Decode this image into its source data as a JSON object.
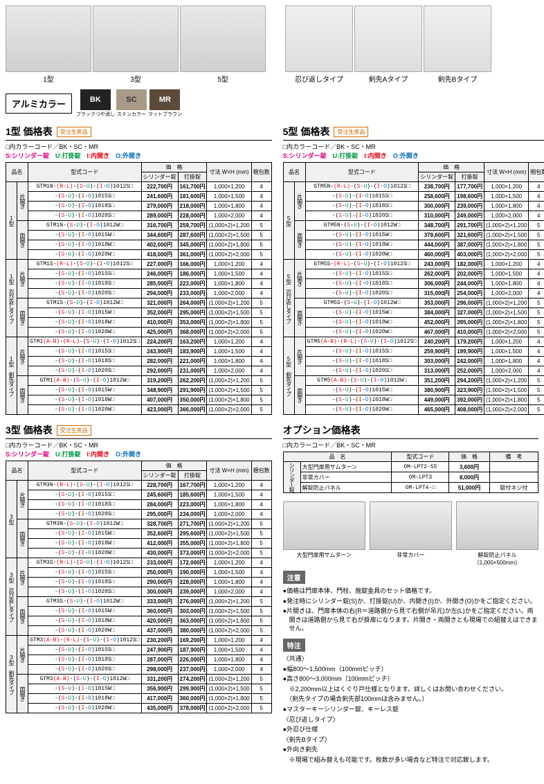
{
  "thumbs_fence": [
    {
      "label": "1型"
    },
    {
      "label": "3型"
    },
    {
      "label": "5型"
    }
  ],
  "thumbs_spike": [
    {
      "label": "忍び返しタイプ"
    },
    {
      "label": "剣先Aタイプ"
    },
    {
      "label": "剣先Bタイプ"
    }
  ],
  "color_title": "アルミカラー",
  "swatches": [
    {
      "code": "BK",
      "label": "ブラックつや消し",
      "bg": "#222222"
    },
    {
      "code": "SC",
      "label": "ステンカラー",
      "bg": "#a89a88",
      "fg": "#333"
    },
    {
      "code": "MR",
      "label": "マットブラウン",
      "bg": "#5b4a3a"
    }
  ],
  "badge": "受注生産品",
  "legend_line1": "□内カラーコード／BK・SC・MR",
  "legend_s": "S:シリンダー錠",
  "legend_u": "U:打掛錠",
  "legend_i": "I:内開き",
  "legend_o": "O:外開き",
  "headers": {
    "name": "品名",
    "model": "型式コード",
    "price": "価　格",
    "p1": "シリンダー錠",
    "p2": "打掛錠",
    "dim": "寸法 W×H (mm)",
    "pkg": "梱包数"
  },
  "table1": {
    "title": "1型 価格表",
    "groups": [
      {
        "type": "1型",
        "sub": "片開き",
        "rows": [
          {
            "m": "GTM1N-(R-L)-(S-U)-(I-O)1012S□",
            "p1": "222,700円",
            "p2": "161,700円",
            "d": "1,000×1,200",
            "k": "4"
          },
          {
            "m": "-(S-U)-(I-O)1015S□",
            "p1": "241,600円",
            "p2": "181,600円",
            "d": "1,000×1,500",
            "k": "4"
          },
          {
            "m": "-(S-U)-(I-O)1018S□",
            "p1": "279,000円",
            "p2": "218,000円",
            "d": "1,000×1,800",
            "k": "4"
          },
          {
            "m": "-(S-U)-(I-O)1020S□",
            "p1": "289,000円",
            "p2": "228,000円",
            "d": "1,000×2,000",
            "k": "4"
          }
        ]
      },
      {
        "type": "",
        "sub": "両開き",
        "rows": [
          {
            "m": "GTM1N-(S-U)-(I-O)1012W□",
            "p1": "316,700円",
            "p2": "259,700円",
            "d": "(1,000×2)×1,200",
            "k": "5"
          },
          {
            "m": "-(S-U)-(I-O)1015W□",
            "p1": "344,600円",
            "p2": "287,600円",
            "d": "(1,000×2)×1,500",
            "k": "5"
          },
          {
            "m": "-(S-U)-(I-O)1018W□",
            "p1": "402,000円",
            "p2": "345,000円",
            "d": "(1,000×2)×1,800",
            "k": "5"
          },
          {
            "m": "-(S-U)-(I-O)1020W□",
            "p1": "418,000円",
            "p2": "361,000円",
            "d": "(1,000×2)×2,000",
            "k": "5"
          }
        ]
      },
      {
        "type": "1型 忍び返しタイプ",
        "sub": "片開き",
        "rows": [
          {
            "m": "GTM1S-(R-L)-(S-U)-(I-O)1012S□",
            "p1": "227,000円",
            "p2": "166,000円",
            "d": "1,000×1,200",
            "k": "4"
          },
          {
            "m": "-(S-U)-(I-O)1015S□",
            "p1": "246,000円",
            "p2": "186,000円",
            "d": "1,000×1,500",
            "k": "4"
          },
          {
            "m": "-(S-U)-(I-O)1018S□",
            "p1": "285,000円",
            "p2": "223,000円",
            "d": "1,000×1,800",
            "k": "4"
          },
          {
            "m": "-(S-U)-(I-O)1020S□",
            "p1": "294,000円",
            "p2": "233,000円",
            "d": "1,000×2,000",
            "k": "4"
          }
        ]
      },
      {
        "type": "",
        "sub": "両開き",
        "rows": [
          {
            "m": "GTM1S-(S-U)-(I-O)1012W□",
            "p1": "321,000円",
            "p2": "264,000円",
            "d": "(1,000×2)×1,200",
            "k": "5"
          },
          {
            "m": "-(S-U)-(I-O)1015W□",
            "p1": "352,000円",
            "p2": "295,000円",
            "d": "(1,000×2)×1,500",
            "k": "5"
          },
          {
            "m": "-(S-U)-(I-O)1018W□",
            "p1": "410,000円",
            "p2": "353,000円",
            "d": "(1,000×2)×1,800",
            "k": "5"
          },
          {
            "m": "-(S-U)-(I-O)1020W□",
            "p1": "425,000円",
            "p2": "368,000円",
            "d": "(1,000×2)×2,000",
            "k": "5"
          }
        ]
      },
      {
        "type": "1型 剣先タイプ",
        "sub": "片開き",
        "rows": [
          {
            "m": "GTM1(A-B)-(R-L)-(S-U)-(I-O)1012S□",
            "p1": "224,200円",
            "p2": "163,200円",
            "d": "1,000×1,200",
            "k": "4"
          },
          {
            "m": "-(S-U)-(I-O)1015S□",
            "p1": "243,900円",
            "p2": "183,900円",
            "d": "1,000×1,500",
            "k": "4"
          },
          {
            "m": "-(S-U)-(I-O)1018S□",
            "p1": "282,000円",
            "p2": "221,000円",
            "d": "1,000×1,800",
            "k": "4"
          },
          {
            "m": "-(S-U)-(I-O)1020S□",
            "p1": "292,000円",
            "p2": "231,000円",
            "d": "1,000×2,000",
            "k": "4"
          }
        ]
      },
      {
        "type": "",
        "sub": "両開き",
        "rows": [
          {
            "m": "GTM1(A-B)-(S-U)-(I-O)1012W□",
            "p1": "319,200円",
            "p2": "262,200円",
            "d": "(1,000×2)×1,200",
            "k": "5"
          },
          {
            "m": "-(S-U)-(I-O)1015W□",
            "p1": "348,900円",
            "p2": "291,900円",
            "d": "(1,000×2)×1,500",
            "k": "5"
          },
          {
            "m": "-(S-U)-(I-O)1018W□",
            "p1": "407,000円",
            "p2": "350,000円",
            "d": "(1,000×2)×1,800",
            "k": "5"
          },
          {
            "m": "-(S-U)-(I-O)1020W□",
            "p1": "423,000円",
            "p2": "366,000円",
            "d": "(1,000×2)×2,000",
            "k": "5"
          }
        ]
      }
    ]
  },
  "table5": {
    "title": "5型 価格表",
    "groups": [
      {
        "type": "5型",
        "sub": "片開き",
        "rows": [
          {
            "m": "GTM5N-(R-L)-(S-U)-(I-O)1012S□",
            "p1": "238,700円",
            "p2": "177,700円",
            "d": "1,000×1,200",
            "k": "4"
          },
          {
            "m": "-(S-U)-(I-O)1015S□",
            "p1": "258,600円",
            "p2": "198,600円",
            "d": "1,000×1,500",
            "k": "4"
          },
          {
            "m": "-(S-U)-(I-O)1018S□",
            "p1": "300,000円",
            "p2": "239,000円",
            "d": "1,000×1,800",
            "k": "4"
          },
          {
            "m": "-(S-U)-(I-O)1020S□",
            "p1": "310,000円",
            "p2": "249,000円",
            "d": "1,000×2,000",
            "k": "4"
          }
        ]
      },
      {
        "type": "",
        "sub": "両開き",
        "rows": [
          {
            "m": "GTM5N-(S-U)-(I-O)1012W□",
            "p1": "348,700円",
            "p2": "291,700円",
            "d": "(1,000×2)×1,200",
            "k": "5"
          },
          {
            "m": "-(S-U)-(I-O)1015W□",
            "p1": "378,600円",
            "p2": "321,600円",
            "d": "(1,000×2)×1,500",
            "k": "5"
          },
          {
            "m": "-(S-U)-(I-O)1018W□",
            "p1": "444,000円",
            "p2": "387,000円",
            "d": "(1,000×2)×1,800",
            "k": "5"
          },
          {
            "m": "-(S-U)-(I-O)1020W□",
            "p1": "460,000円",
            "p2": "403,000円",
            "d": "(1,000×2)×2,000",
            "k": "5"
          }
        ]
      },
      {
        "type": "5型 忍び返しタイプ",
        "sub": "片開き",
        "rows": [
          {
            "m": "GTM5S-(R-L)-(S-U)-(I-O)1012S□",
            "p1": "243,000円",
            "p2": "182,000円",
            "d": "1,000×1,200",
            "k": "4"
          },
          {
            "m": "-(S-U)-(I-O)1015S□",
            "p1": "262,000円",
            "p2": "202,000円",
            "d": "1,000×1,500",
            "k": "4"
          },
          {
            "m": "-(S-U)-(I-O)1018S□",
            "p1": "306,000円",
            "p2": "244,000円",
            "d": "1,000×1,800",
            "k": "4"
          },
          {
            "m": "-(S-U)-(I-O)1020S□",
            "p1": "315,000円",
            "p2": "254,000円",
            "d": "1,000×2,000",
            "k": "4"
          }
        ]
      },
      {
        "type": "",
        "sub": "両開き",
        "rows": [
          {
            "m": "GTM5S-(S-U)-(I-O)1012W□",
            "p1": "353,000円",
            "p2": "296,000円",
            "d": "(1,000×2)×1,200",
            "k": "5"
          },
          {
            "m": "-(S-U)-(I-O)1015W□",
            "p1": "384,000円",
            "p2": "327,000円",
            "d": "(1,000×2)×1,500",
            "k": "5"
          },
          {
            "m": "-(S-U)-(I-O)1018W□",
            "p1": "452,000円",
            "p2": "395,000円",
            "d": "(1,000×2)×1,800",
            "k": "5"
          },
          {
            "m": "-(S-U)-(I-O)1020W□",
            "p1": "467,000円",
            "p2": "410,000円",
            "d": "(1,000×2)×2,000",
            "k": "5"
          }
        ]
      },
      {
        "type": "5型 剣先タイプ",
        "sub": "片開き",
        "rows": [
          {
            "m": "GTM5(A-B)-(R-L)-(S-U)-(I-O)1012S□",
            "p1": "240,200円",
            "p2": "179,200円",
            "d": "1,000×1,200",
            "k": "4"
          },
          {
            "m": "-(S-U)-(I-O)1015S□",
            "p1": "259,900円",
            "p2": "199,900円",
            "d": "1,000×1,500",
            "k": "4"
          },
          {
            "m": "-(S-U)-(I-O)1018S□",
            "p1": "303,000円",
            "p2": "242,000円",
            "d": "1,000×1,800",
            "k": "4"
          },
          {
            "m": "-(S-U)-(I-O)1020S□",
            "p1": "313,000円",
            "p2": "252,000円",
            "d": "1,000×2,000",
            "k": "4"
          }
        ]
      },
      {
        "type": "",
        "sub": "両開き",
        "rows": [
          {
            "m": "GTM5(A-B)-(S-U)-(I-O)1012W□",
            "p1": "351,200円",
            "p2": "294,200円",
            "d": "(1,000×2)×1,200",
            "k": "5"
          },
          {
            "m": "-(S-U)-(I-O)1015W□",
            "p1": "380,900円",
            "p2": "323,900円",
            "d": "(1,000×2)×1,500",
            "k": "5"
          },
          {
            "m": "-(S-U)-(I-O)1018W□",
            "p1": "449,000円",
            "p2": "392,000円",
            "d": "(1,000×2)×1,800",
            "k": "5"
          },
          {
            "m": "-(S-U)-(I-O)1020W□",
            "p1": "465,000円",
            "p2": "408,000円",
            "d": "(1,000×2)×2,000",
            "k": "5"
          }
        ]
      }
    ]
  },
  "table3": {
    "title": "3型 価格表",
    "groups": [
      {
        "type": "3型",
        "sub": "片開き",
        "rows": [
          {
            "m": "GTM3N-(R-L)-(S-U)-(I-O)1012S□",
            "p1": "228,700円",
            "p2": "167,700円",
            "d": "1,000×1,200",
            "k": "4"
          },
          {
            "m": "-(S-U)-(I-O)1015S□",
            "p1": "245,600円",
            "p2": "185,600円",
            "d": "1,000×1,500",
            "k": "4"
          },
          {
            "m": "-(S-U)-(I-O)1018S□",
            "p1": "284,000円",
            "p2": "223,000円",
            "d": "1,000×1,800",
            "k": "4"
          },
          {
            "m": "-(S-U)-(I-O)1020S□",
            "p1": "295,000円",
            "p2": "234,000円",
            "d": "1,000×2,000",
            "k": "4"
          }
        ]
      },
      {
        "type": "",
        "sub": "両開き",
        "rows": [
          {
            "m": "GTM3N-(S-U)-(I-O)1012W□",
            "p1": "328,700円",
            "p2": "271,700円",
            "d": "(1,000×2)×1,200",
            "k": "5"
          },
          {
            "m": "-(S-U)-(I-O)1015W□",
            "p1": "352,600円",
            "p2": "295,600円",
            "d": "(1,000×2)×1,500",
            "k": "5"
          },
          {
            "m": "-(S-U)-(I-O)1018W□",
            "p1": "412,000円",
            "p2": "355,000円",
            "d": "(1,000×2)×1,800",
            "k": "5"
          },
          {
            "m": "-(S-U)-(I-O)1020W□",
            "p1": "430,000円",
            "p2": "373,000円",
            "d": "(1,000×2)×2,000",
            "k": "5"
          }
        ]
      },
      {
        "type": "3型 忍び返しタイプ",
        "sub": "片開き",
        "rows": [
          {
            "m": "GTM3S-(R-L)-(S-U)-(I-O)1012S□",
            "p1": "233,000円",
            "p2": "172,000円",
            "d": "1,000×1,200",
            "k": "4"
          },
          {
            "m": "-(S-U)-(I-O)1015S□",
            "p1": "250,000円",
            "p2": "190,000円",
            "d": "1,000×1,500",
            "k": "4"
          },
          {
            "m": "-(S-U)-(I-O)1018S□",
            "p1": "290,000円",
            "p2": "228,000円",
            "d": "1,000×1,800",
            "k": "4"
          },
          {
            "m": "-(S-U)-(I-O)1020S□",
            "p1": "300,000円",
            "p2": "239,000円",
            "d": "1,000×2,000",
            "k": "4"
          }
        ]
      },
      {
        "type": "",
        "sub": "両開き",
        "rows": [
          {
            "m": "GTM3S-(S-U)-(I-O)1012W□",
            "p1": "333,000円",
            "p2": "276,000円",
            "d": "(1,000×2)×1,200",
            "k": "5"
          },
          {
            "m": "-(S-U)-(I-O)1015W□",
            "p1": "360,000円",
            "p2": "303,000円",
            "d": "(1,000×2)×1,500",
            "k": "5"
          },
          {
            "m": "-(S-U)-(I-O)1018W□",
            "p1": "420,000円",
            "p2": "363,000円",
            "d": "(1,000×2)×1,800",
            "k": "5"
          },
          {
            "m": "-(S-U)-(I-O)1020W□",
            "p1": "437,000円",
            "p2": "380,000円",
            "d": "(1,000×2)×2,000",
            "k": "5"
          }
        ]
      },
      {
        "type": "3型 剣先タイプ",
        "sub": "片開き",
        "rows": [
          {
            "m": "GTM3(A-B)-(R-L)-(S-U)-(I-O)1012S□",
            "p1": "230,200円",
            "p2": "169,200円",
            "d": "1,000×1,200",
            "k": "4"
          },
          {
            "m": "-(S-U)-(I-O)1015S□",
            "p1": "247,900円",
            "p2": "187,900円",
            "d": "1,000×1,500",
            "k": "4"
          },
          {
            "m": "-(S-U)-(I-O)1018S□",
            "p1": "287,000円",
            "p2": "226,000円",
            "d": "1,000×1,800",
            "k": "4"
          },
          {
            "m": "-(S-U)-(I-O)1020S□",
            "p1": "298,000円",
            "p2": "237,000円",
            "d": "1,000×2,000",
            "k": "4"
          }
        ]
      },
      {
        "type": "",
        "sub": "両開き",
        "rows": [
          {
            "m": "GTM3(A-B)-(S-U)-(I-O)1012W□",
            "p1": "331,200円",
            "p2": "274,200円",
            "d": "(1,000×2)×1,200",
            "k": "5"
          },
          {
            "m": "-(S-U)-(I-O)1015W□",
            "p1": "356,900円",
            "p2": "299,900円",
            "d": "(1,000×2)×1,500",
            "k": "5"
          },
          {
            "m": "-(S-U)-(I-O)1018W□",
            "p1": "417,000円",
            "p2": "360,000円",
            "d": "(1,000×2)×1,800",
            "k": "5"
          },
          {
            "m": "-(S-U)-(I-O)1020W□",
            "p1": "435,000円",
            "p2": "378,000円",
            "d": "(1,000×2)×2,000",
            "k": "5"
          }
        ]
      }
    ]
  },
  "option": {
    "title": "オプション価格表",
    "legend": "□内カラーコード／BK・SC・MR",
    "headers": {
      "name": "品　名",
      "model": "型式コード",
      "price": "価　格",
      "note": "備　考"
    },
    "group_label": "シリンダー錠",
    "rows": [
      {
        "n": "大型門扉用サムターン",
        "m": "OM-LPT2-55",
        "p": "3,600円",
        "note": ""
      },
      {
        "n": "非常カバー",
        "m": "OM-LPT3",
        "p": "8,000円",
        "note": ""
      },
      {
        "n": "解錠防止パネル",
        "m": "OM-LPT4-□",
        "p": "51,000円",
        "note": "取付ネジ付"
      }
    ],
    "imgs": [
      {
        "label": "大型門扉用サムターン"
      },
      {
        "label": "非常カバー"
      },
      {
        "label": "解錠防止パネル\n（1,000×500mm）"
      }
    ]
  },
  "notes": {
    "caution_title": "注意",
    "caution": [
      "●価格は門扉本体、門柱、施錠金具のセット価格です。",
      "●発注時にシリンダー錠(S)か、打掛錠(U)か、内開き(I)か、外開き(O)かをご指定ください。",
      "●片開きは、門扉本体の右(R＝道路側から見て右側が吊元)か左(L)かをご指定ください。両開きは道路側から見て右が掛扉になります。片開き・両開きとも現場での組替えはできません。"
    ],
    "feature_title": "特注",
    "feature": [
      "〈共通〉",
      "●幅800～1,500mm（100mmピッチ）",
      "●高さ800～3,000mm（100mmピッチ）",
      "　※2,200mm以上はくぐり戸仕様となります。詳しくはお問い合わせください。",
      "　（剣先タイプの場合剣先部100mmは含みません。）",
      "●マスターキーシリンダー錠、キーレス錠",
      "〈忍び返しタイプ〉",
      "●外忍び仕様",
      "〈剣先Bタイプ〉",
      "●外向き剣先",
      "　※現場で組み替えも可能です。枚数が多い場合など特注で対応致します。"
    ]
  }
}
